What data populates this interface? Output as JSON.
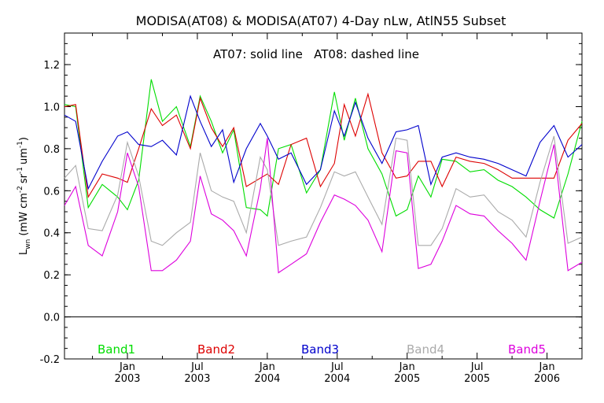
{
  "chart_data": {
    "type": "line",
    "title": "MODISA(AT08) & MODISA(AT07) 4-Day nLw, AtlN55 Subset",
    "annotation": "AT07: solid line   AT08: dashed line",
    "ylabel": "L_wn (mW cm^-2 sr^-1 um^-1)",
    "ylabel_main": "L",
    "ylabel_sub": "wn",
    "ylabel_units": "(mW cm",
    "ylabel_units2": "sr",
    "ylabel_units3": "um",
    "ylabel_exp1": "-2",
    "ylabel_exp2": "-1",
    "ylabel_exp3": "-1",
    "ylabel_close": ")",
    "ylim": [
      -0.2,
      1.35
    ],
    "xlim": [
      2002.55,
      2006.25
    ],
    "yticks": [
      -0.2,
      0.0,
      0.2,
      0.4,
      0.6,
      0.8,
      1.0,
      1.2
    ],
    "ytick_labels": [
      "-0.2",
      "0.0",
      "0.2",
      "0.4",
      "0.6",
      "0.8",
      "1.0",
      "1.2"
    ],
    "xticks": [
      {
        "x": 2003.0,
        "month": "Jan",
        "year": "2003"
      },
      {
        "x": 2003.5,
        "month": "Jul",
        "year": "2003"
      },
      {
        "x": 2004.0,
        "month": "Jan",
        "year": "2004"
      },
      {
        "x": 2004.5,
        "month": "Jul",
        "year": "2004"
      },
      {
        "x": 2005.0,
        "month": "Jan",
        "year": "2005"
      },
      {
        "x": 2005.5,
        "month": "Jul",
        "year": "2005"
      },
      {
        "x": 2006.0,
        "month": "Jan",
        "year": "2006"
      }
    ],
    "zero_line": 0.0,
    "grid": false,
    "series": [
      {
        "name": "Band1",
        "color": "#00dd00",
        "x": [
          2002.55,
          2002.63,
          2002.72,
          2002.82,
          2002.93,
          2003.0,
          2003.08,
          2003.17,
          2003.25,
          2003.35,
          2003.45,
          2003.52,
          2003.6,
          2003.68,
          2003.76,
          2003.85,
          2003.95,
          2004.0,
          2004.08,
          2004.17,
          2004.28,
          2004.38,
          2004.48,
          2004.55,
          2004.63,
          2004.72,
          2004.82,
          2004.92,
          2005.0,
          2005.08,
          2005.17,
          2005.25,
          2005.35,
          2005.45,
          2005.55,
          2005.65,
          2005.75,
          2005.85,
          2005.95,
          2006.05,
          2006.15,
          2006.25
        ],
        "y": [
          1.01,
          1.0,
          0.52,
          0.63,
          0.57,
          0.51,
          0.65,
          1.13,
          0.93,
          1.0,
          0.81,
          1.05,
          0.93,
          0.78,
          0.89,
          0.52,
          0.51,
          0.48,
          0.8,
          0.82,
          0.59,
          0.7,
          1.07,
          0.84,
          1.04,
          0.8,
          0.68,
          0.48,
          0.51,
          0.67,
          0.57,
          0.75,
          0.74,
          0.69,
          0.7,
          0.65,
          0.62,
          0.57,
          0.51,
          0.47,
          0.68,
          0.93
        ]
      },
      {
        "name": "Band2",
        "color": "#dd0000",
        "x": [
          2002.55,
          2002.63,
          2002.72,
          2002.82,
          2002.93,
          2003.0,
          2003.08,
          2003.17,
          2003.25,
          2003.35,
          2003.45,
          2003.52,
          2003.6,
          2003.68,
          2003.76,
          2003.85,
          2003.95,
          2004.0,
          2004.08,
          2004.17,
          2004.28,
          2004.38,
          2004.48,
          2004.55,
          2004.63,
          2004.72,
          2004.82,
          2004.92,
          2005.0,
          2005.08,
          2005.17,
          2005.25,
          2005.35,
          2005.45,
          2005.55,
          2005.65,
          2005.75,
          2005.85,
          2005.95,
          2006.05,
          2006.15,
          2006.25
        ],
        "y": [
          1.0,
          1.01,
          0.57,
          0.68,
          0.66,
          0.64,
          0.8,
          0.99,
          0.91,
          0.96,
          0.8,
          1.04,
          0.9,
          0.81,
          0.9,
          0.62,
          0.66,
          0.68,
          0.63,
          0.82,
          0.85,
          0.62,
          0.73,
          1.01,
          0.86,
          1.06,
          0.78,
          0.66,
          0.67,
          0.74,
          0.74,
          0.62,
          0.76,
          0.74,
          0.73,
          0.7,
          0.66,
          0.66,
          0.66,
          0.66,
          0.84,
          0.92
        ]
      },
      {
        "name": "Band3",
        "color": "#0000cc",
        "x": [
          2002.55,
          2002.63,
          2002.72,
          2002.82,
          2002.93,
          2003.0,
          2003.08,
          2003.17,
          2003.25,
          2003.35,
          2003.45,
          2003.52,
          2003.6,
          2003.68,
          2003.76,
          2003.85,
          2003.95,
          2004.0,
          2004.08,
          2004.17,
          2004.28,
          2004.38,
          2004.48,
          2004.55,
          2004.63,
          2004.72,
          2004.82,
          2004.92,
          2005.0,
          2005.08,
          2005.17,
          2005.25,
          2005.35,
          2005.45,
          2005.55,
          2005.65,
          2005.75,
          2005.85,
          2005.95,
          2006.05,
          2006.15,
          2006.25
        ],
        "y": [
          0.96,
          0.93,
          0.61,
          0.74,
          0.86,
          0.88,
          0.82,
          0.81,
          0.84,
          0.77,
          1.05,
          0.93,
          0.81,
          0.89,
          0.64,
          0.8,
          0.92,
          0.86,
          0.75,
          0.78,
          0.63,
          0.7,
          0.98,
          0.86,
          1.02,
          0.85,
          0.73,
          0.88,
          0.89,
          0.91,
          0.63,
          0.76,
          0.78,
          0.76,
          0.75,
          0.73,
          0.7,
          0.67,
          0.83,
          0.91,
          0.76,
          0.82
        ]
      },
      {
        "name": "Band4",
        "color": "#aaaaaa",
        "x": [
          2002.55,
          2002.63,
          2002.72,
          2002.82,
          2002.93,
          2003.0,
          2003.08,
          2003.17,
          2003.25,
          2003.35,
          2003.45,
          2003.52,
          2003.6,
          2003.68,
          2003.76,
          2003.85,
          2003.95,
          2004.0,
          2004.08,
          2004.17,
          2004.28,
          2004.38,
          2004.48,
          2004.55,
          2004.63,
          2004.72,
          2004.82,
          2004.92,
          2005.0,
          2005.08,
          2005.17,
          2005.25,
          2005.35,
          2005.45,
          2005.55,
          2005.65,
          2005.75,
          2005.85,
          2005.95,
          2006.05,
          2006.15,
          2006.25
        ],
        "y": [
          0.66,
          0.72,
          0.42,
          0.41,
          0.58,
          0.83,
          0.67,
          0.36,
          0.34,
          0.4,
          0.45,
          0.78,
          0.6,
          0.57,
          0.55,
          0.4,
          0.76,
          0.7,
          0.34,
          0.36,
          0.38,
          0.52,
          0.69,
          0.67,
          0.69,
          0.57,
          0.44,
          0.85,
          0.84,
          0.34,
          0.34,
          0.42,
          0.61,
          0.57,
          0.58,
          0.5,
          0.46,
          0.38,
          0.64,
          0.86,
          0.35,
          0.38
        ]
      },
      {
        "name": "Band5",
        "color": "#dd00dd",
        "x": [
          2002.55,
          2002.63,
          2002.72,
          2002.82,
          2002.93,
          2003.0,
          2003.08,
          2003.17,
          2003.25,
          2003.35,
          2003.45,
          2003.52,
          2003.6,
          2003.68,
          2003.76,
          2003.85,
          2003.95,
          2004.0,
          2004.08,
          2004.17,
          2004.28,
          2004.38,
          2004.48,
          2004.55,
          2004.63,
          2004.72,
          2004.82,
          2004.92,
          2005.0,
          2005.08,
          2005.17,
          2005.25,
          2005.35,
          2005.45,
          2005.55,
          2005.65,
          2005.75,
          2005.85,
          2005.95,
          2006.05,
          2006.15,
          2006.25
        ],
        "y": [
          0.53,
          0.62,
          0.34,
          0.29,
          0.5,
          0.78,
          0.62,
          0.22,
          0.22,
          0.27,
          0.36,
          0.67,
          0.49,
          0.46,
          0.41,
          0.29,
          0.61,
          0.85,
          0.21,
          0.25,
          0.3,
          0.45,
          0.58,
          0.56,
          0.53,
          0.46,
          0.31,
          0.79,
          0.78,
          0.23,
          0.25,
          0.36,
          0.53,
          0.49,
          0.48,
          0.41,
          0.35,
          0.27,
          0.55,
          0.82,
          0.22,
          0.26
        ]
      }
    ],
    "legend": [
      "Band1",
      "Band2",
      "Band3",
      "Band4",
      "Band5"
    ]
  }
}
